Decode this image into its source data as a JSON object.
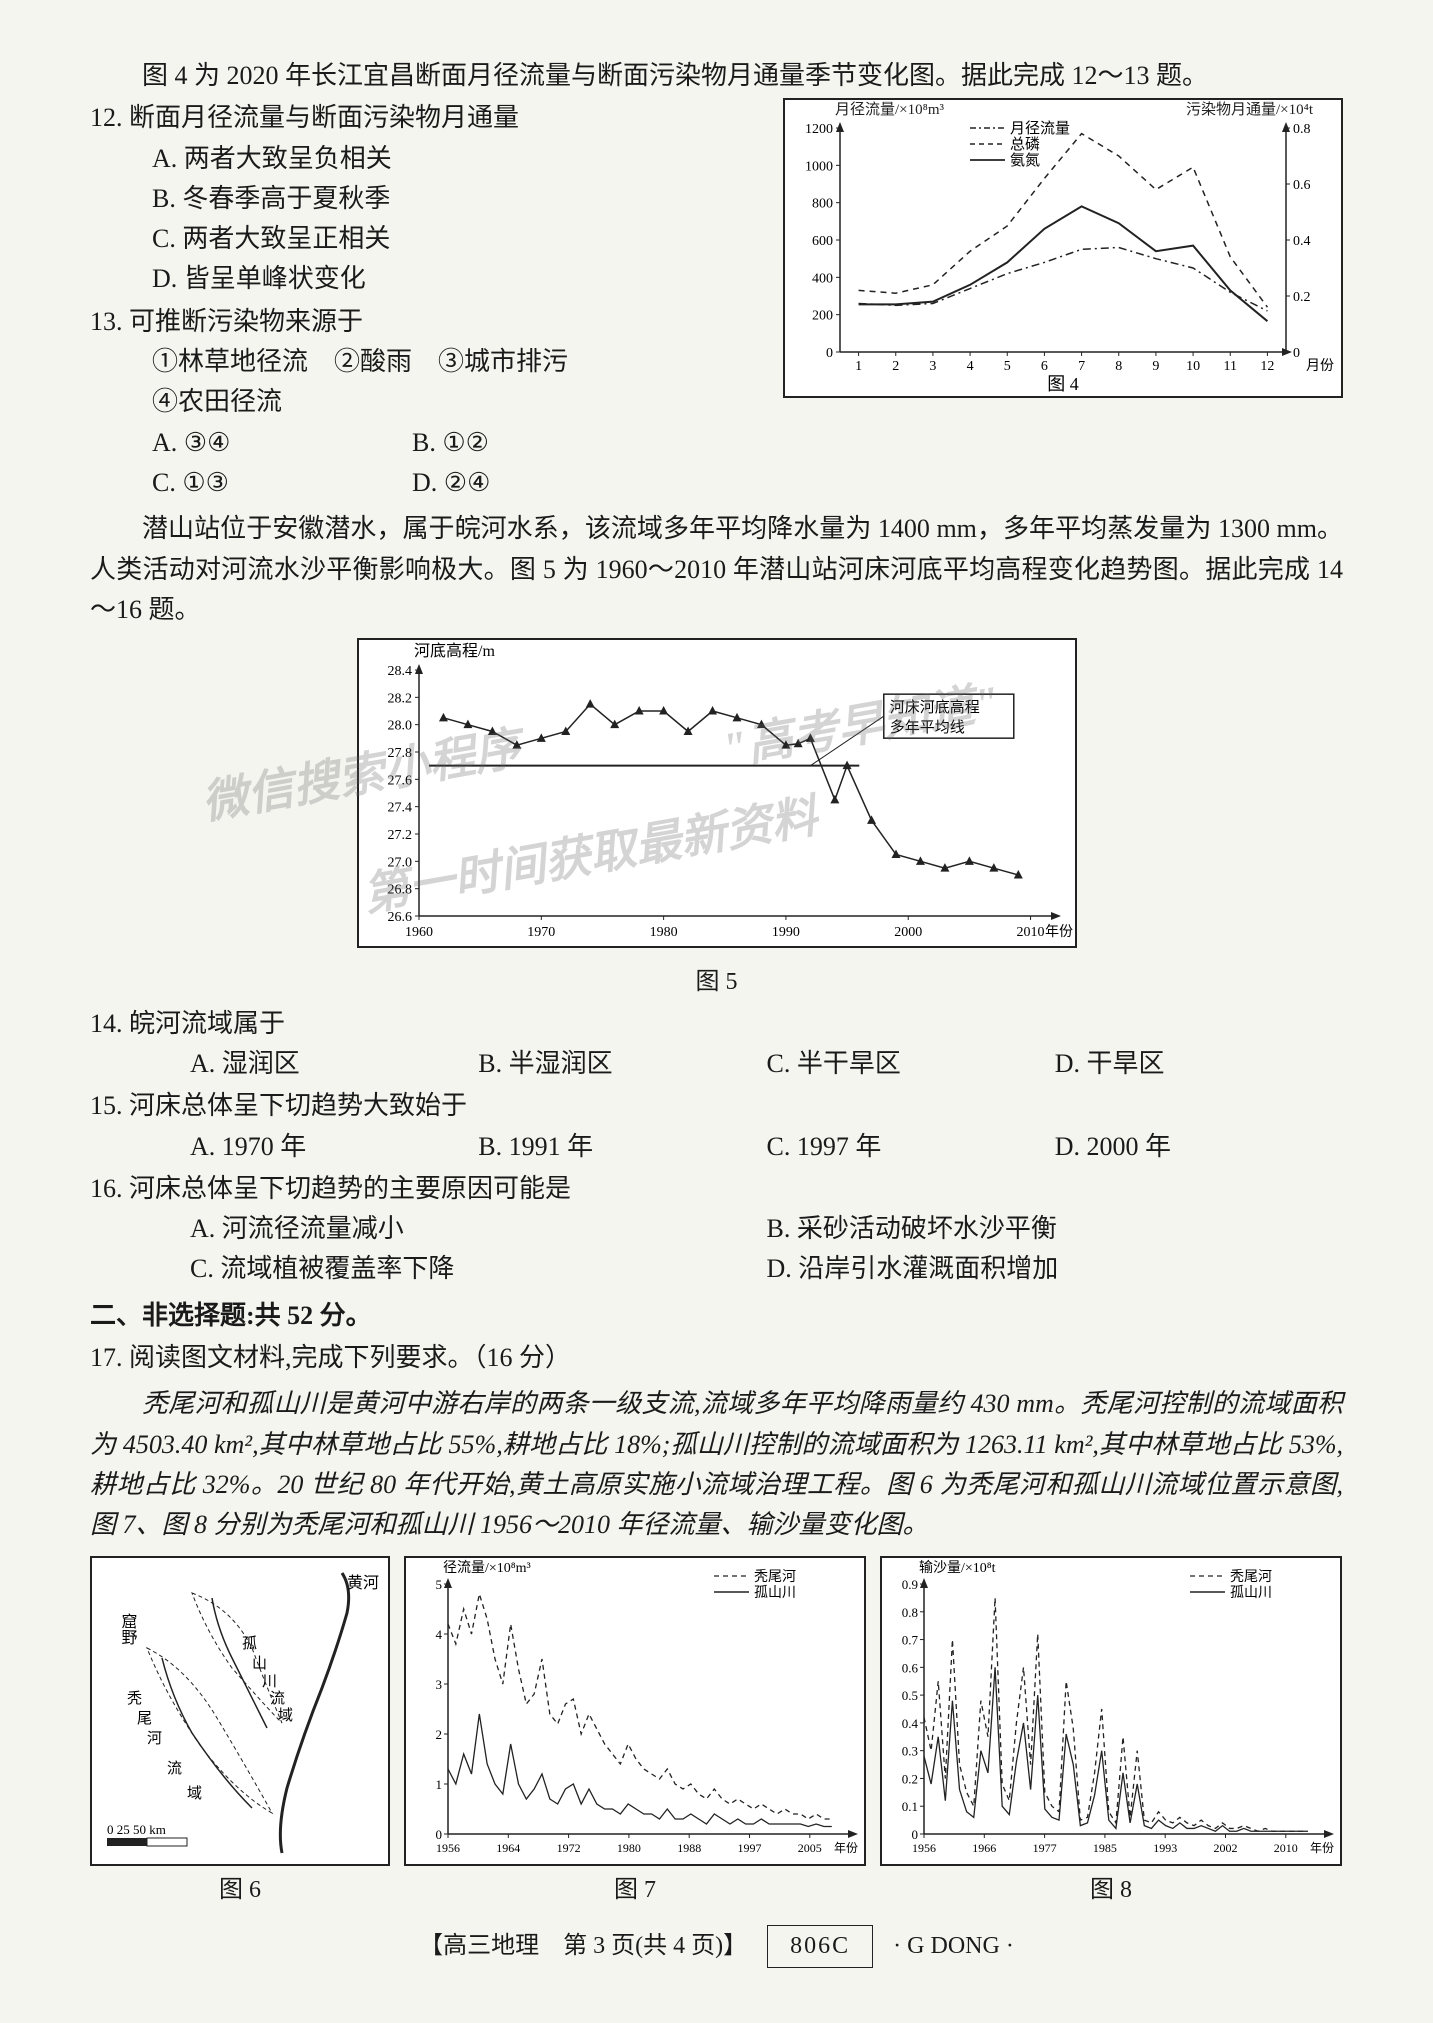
{
  "intro12": "图 4 为 2020 年长江宜昌断面月径流量与断面污染物月通量季节变化图。据此完成 12～13 题。",
  "q12": {
    "num": "12.",
    "stem": "断面月径流量与断面污染物月通量",
    "opts": {
      "A": "A. 两者大致呈负相关",
      "B": "B. 冬春季高于夏秋季",
      "C": "C. 两者大致呈正相关",
      "D": "D. 皆呈单峰状变化"
    }
  },
  "q13": {
    "num": "13.",
    "stem": "可推断污染物来源于",
    "subs": "①林草地径流　②酸雨　③城市排污",
    "subs2": "④农田径流",
    "opts": {
      "A": "A. ③④",
      "B": "B. ①②",
      "C": "C. ①③",
      "D": "D. ②④"
    }
  },
  "chart4": {
    "leftAxisTitle": "月径流量/×10⁸m³",
    "rightAxisTitle": "污染物月通量/×10⁴t",
    "legend": {
      "l1": "月径流量",
      "l2": "总磷",
      "l3": "氨氮"
    },
    "xCaption": "图 4",
    "xUnit": "月份",
    "xTicks": [
      "1",
      "2",
      "3",
      "4",
      "5",
      "6",
      "7",
      "8",
      "9",
      "10",
      "11",
      "12"
    ],
    "yLeftTicks": [
      "0",
      "200",
      "400",
      "600",
      "800",
      "1000",
      "1200"
    ],
    "yRightTicks": [
      "0",
      "0.2",
      "0.4",
      "0.6",
      "0.8"
    ],
    "colors": {
      "axis": "#222",
      "bg": "#ffffff"
    },
    "series": {
      "flow": {
        "style": "dash-dot",
        "vals": [
          260,
          250,
          260,
          340,
          420,
          480,
          550,
          560,
          500,
          450,
          320,
          220
        ]
      },
      "tp": {
        "style": "dash",
        "vals": [
          0.22,
          0.21,
          0.24,
          0.36,
          0.45,
          0.62,
          0.78,
          0.7,
          0.58,
          0.66,
          0.34,
          0.16
        ]
      },
      "nh": {
        "style": "solid",
        "vals": [
          0.17,
          0.17,
          0.18,
          0.24,
          0.32,
          0.44,
          0.52,
          0.46,
          0.36,
          0.38,
          0.22,
          0.11
        ]
      }
    }
  },
  "intro14": "潜山站位于安徽潜水，属于皖河水系，该流域多年平均降水量为 1400 mm，多年平均蒸发量为 1300 mm。人类活动对河流水沙平衡影响极大。图 5 为 1960～2010 年潜山站河床河底平均高程变化趋势图。据此完成 14～16 题。",
  "chart5": {
    "yTitle": "河底高程/m",
    "xUnit": "年份",
    "caption": "图 5",
    "xTicks": [
      "1960",
      "1970",
      "1980",
      "1990",
      "2000",
      "2010"
    ],
    "yTicks": [
      "26.6",
      "26.8",
      "27.0",
      "27.2",
      "27.4",
      "27.6",
      "27.8",
      "28.0",
      "28.2",
      "28.4"
    ],
    "annotation": "河床河底高程\n多年平均线",
    "meanLineY": 27.7,
    "series": {
      "vals": [
        28.05,
        28.0,
        27.95,
        27.85,
        27.9,
        27.95,
        28.15,
        28.0,
        28.1,
        28.1,
        27.95,
        28.1,
        28.05,
        28.0,
        27.85,
        27.86,
        27.9,
        27.45,
        27.7,
        27.3,
        27.05,
        27.0,
        26.95,
        27.0,
        26.95,
        26.9
      ]
    },
    "years": [
      1962,
      1964,
      1966,
      1968,
      1970,
      1972,
      1974,
      1976,
      1978,
      1980,
      1982,
      1984,
      1986,
      1988,
      1990,
      1991,
      1992,
      1994,
      1995,
      1997,
      1999,
      2001,
      2003,
      2005,
      2007,
      2009
    ],
    "colors": {
      "axis": "#222",
      "bg": "#ffffff"
    }
  },
  "q14": {
    "num": "14.",
    "stem": "皖河流域属于",
    "opts": {
      "A": "A. 湿润区",
      "B": "B. 半湿润区",
      "C": "C. 半干旱区",
      "D": "D. 干旱区"
    }
  },
  "q15": {
    "num": "15.",
    "stem": "河床总体呈下切趋势大致始于",
    "opts": {
      "A": "A. 1970 年",
      "B": "B. 1991 年",
      "C": "C. 1997 年",
      "D": "D. 2000 年"
    }
  },
  "q16": {
    "num": "16.",
    "stem": "河床总体呈下切趋势的主要原因可能是",
    "opts": {
      "A": "A. 河流径流量减小",
      "B": "B. 采砂活动破坏水沙平衡",
      "C": "C. 流域植被覆盖率下降",
      "D": "D. 沿岸引水灌溉面积增加"
    }
  },
  "section2": "二、非选择题:共 52 分。",
  "q17": {
    "num": "17.",
    "stem": "阅读图文材料,完成下列要求。（16 分）",
    "body": "秃尾河和孤山川是黄河中游右岸的两条一级支流,流域多年平均降雨量约 430 mm。秃尾河控制的流域面积为 4503.40 km²,其中林草地占比 55%,耕地占比 18%;孤山川控制的流域面积为 1263.11 km²,其中林草地占比 53%,耕地占比 32%。20 世纪 80 年代开始,黄土高原实施小流域治理工程。图 6 为秃尾河和孤山川流域位置示意图,图 7、图 8 分别为秃尾河和孤山川 1956～2010 年径流量、输沙量变化图。"
  },
  "chart6": {
    "caption": "图 6",
    "labels": {
      "huanghe": "黄河",
      "yulin": "窟野",
      "tuheihe": "秃尾河",
      "gushan": "孤山川",
      "liuyu": "流域",
      "scale": "0   25  50 km"
    }
  },
  "chart7": {
    "yTitle": "径流量/×10⁸m³",
    "caption": "图 7",
    "legend": {
      "a": "秃尾河",
      "b": "孤山川"
    },
    "xTicks": [
      "1956",
      "1964",
      "1972",
      "1980",
      "1988",
      "1997",
      "2005"
    ],
    "xUnit": "年份",
    "yTicks": [
      "0",
      "1",
      "2",
      "3",
      "4",
      "5"
    ],
    "tuwei": {
      "style": "dash",
      "vals": [
        4.2,
        3.8,
        4.5,
        4.0,
        4.8,
        4.3,
        3.5,
        3.0,
        4.2,
        3.3,
        2.6,
        2.8,
        3.5,
        2.4,
        2.2,
        2.6,
        2.7,
        2.0,
        2.4,
        2.1,
        1.8,
        1.6,
        1.4,
        1.8,
        1.5,
        1.3,
        1.2,
        1.1,
        1.3,
        1.0,
        0.9,
        1.0,
        0.8,
        0.7,
        0.9,
        0.7,
        0.6,
        0.7,
        0.6,
        0.5,
        0.6,
        0.5,
        0.4,
        0.5,
        0.4,
        0.4,
        0.3,
        0.4,
        0.3,
        0.3
      ]
    },
    "gushan": {
      "style": "solid",
      "vals": [
        1.3,
        1.0,
        1.6,
        1.2,
        2.4,
        1.4,
        1.0,
        0.8,
        1.8,
        1.0,
        0.7,
        0.9,
        1.2,
        0.7,
        0.6,
        0.9,
        1.0,
        0.6,
        0.9,
        0.6,
        0.5,
        0.5,
        0.4,
        0.6,
        0.5,
        0.4,
        0.4,
        0.3,
        0.5,
        0.3,
        0.3,
        0.4,
        0.3,
        0.2,
        0.4,
        0.3,
        0.2,
        0.3,
        0.2,
        0.2,
        0.3,
        0.2,
        0.2,
        0.2,
        0.2,
        0.2,
        0.15,
        0.2,
        0.15,
        0.15
      ]
    }
  },
  "chart8": {
    "yTitle": "输沙量/×10⁸t",
    "caption": "图 8",
    "legend": {
      "a": "秃尾河",
      "b": "孤山川"
    },
    "xTicks": [
      "1956",
      "1966",
      "1977",
      "1985",
      "1993",
      "2002",
      "2010"
    ],
    "xUnit": "年份",
    "yTicks": [
      "0",
      "0.1",
      "0.2",
      "0.3",
      "0.4",
      "0.5",
      "0.6",
      "0.7",
      "0.8",
      "0.9"
    ],
    "tuwei": {
      "style": "dash",
      "vals": [
        0.42,
        0.3,
        0.55,
        0.2,
        0.7,
        0.25,
        0.15,
        0.1,
        0.48,
        0.35,
        0.85,
        0.18,
        0.12,
        0.4,
        0.6,
        0.25,
        0.72,
        0.15,
        0.1,
        0.08,
        0.55,
        0.38,
        0.05,
        0.06,
        0.22,
        0.45,
        0.08,
        0.04,
        0.35,
        0.06,
        0.3,
        0.05,
        0.04,
        0.08,
        0.05,
        0.04,
        0.06,
        0.04,
        0.03,
        0.05,
        0.03,
        0.02,
        0.04,
        0.02,
        0.02,
        0.03,
        0.02,
        0.01,
        0.02,
        0.01,
        0.01,
        0.01,
        0.01,
        0.01,
        0.01
      ]
    },
    "gushan": {
      "style": "solid",
      "vals": [
        0.28,
        0.18,
        0.35,
        0.12,
        0.48,
        0.16,
        0.08,
        0.06,
        0.3,
        0.22,
        0.6,
        0.1,
        0.07,
        0.26,
        0.4,
        0.16,
        0.5,
        0.09,
        0.06,
        0.05,
        0.36,
        0.25,
        0.03,
        0.04,
        0.14,
        0.3,
        0.05,
        0.02,
        0.22,
        0.04,
        0.18,
        0.03,
        0.02,
        0.05,
        0.03,
        0.02,
        0.04,
        0.02,
        0.02,
        0.03,
        0.02,
        0.01,
        0.03,
        0.01,
        0.01,
        0.02,
        0.01,
        0.01,
        0.01,
        0.01,
        0.01,
        0.01,
        0.01,
        0.01,
        0.01
      ]
    }
  },
  "footer": {
    "center": "【高三地理　第 3 页(共 4 页)】",
    "code": "806C",
    "right": "· G DONG ·"
  },
  "watermarks": {
    "w1": "微信搜索小程序",
    "w2": "\"高考早知道\"",
    "w3": "第一时间获取最新资料"
  }
}
